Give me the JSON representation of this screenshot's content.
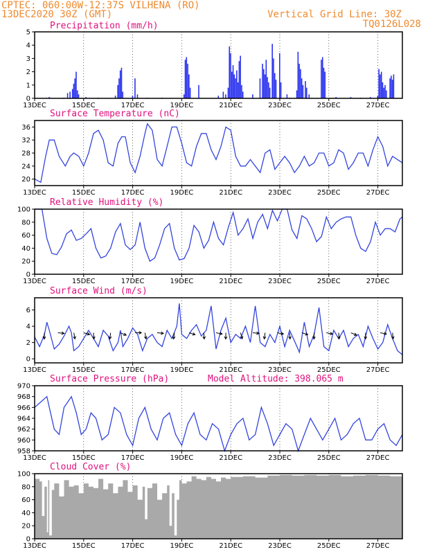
{
  "header": {
    "line1": "CPTEC:   060:00W-12:37S  VILHENA (RO)",
    "line2": "13DEC2020 30Z (GMT)",
    "grid_note": "Vertical Grid Line: 30Z",
    "code": "TQ0126L028"
  },
  "colors": {
    "header": "#ee8a2e",
    "title": "#e0117d",
    "line": "#3344dd",
    "bar": "#2b33ee",
    "cloud": "#a9a9a9"
  },
  "chart_data": [
    {
      "id": "precip",
      "type": "bar",
      "title": "Precipitation (mm/h)",
      "ylim": [
        0,
        5
      ],
      "yticks": [
        0,
        1,
        2,
        3,
        4,
        5
      ],
      "x_ticks": [
        "13DEC",
        "15DEC",
        "17DEC",
        "19DEC",
        "21DEC",
        "23DEC",
        "25DEC",
        "27DEC"
      ],
      "x_tick_days": [
        0,
        2,
        4,
        6,
        8,
        10,
        12,
        14
      ],
      "x_range": [
        0,
        15
      ],
      "events": [
        {
          "x": 0.6,
          "v": 0.1
        },
        {
          "x": 1.2,
          "v": 0.05
        },
        {
          "x": 1.35,
          "v": 0.4
        },
        {
          "x": 1.45,
          "v": 0.5
        },
        {
          "x": 1.55,
          "v": 0.7
        },
        {
          "x": 1.6,
          "v": 1.1
        },
        {
          "x": 1.65,
          "v": 1.5
        },
        {
          "x": 1.7,
          "v": 2.0
        },
        {
          "x": 1.75,
          "v": 0.6
        },
        {
          "x": 1.8,
          "v": 0.3
        },
        {
          "x": 2.1,
          "v": 0.1
        },
        {
          "x": 2.6,
          "v": 0.05
        },
        {
          "x": 3.3,
          "v": 0.2
        },
        {
          "x": 3.4,
          "v": 1.0
        },
        {
          "x": 3.45,
          "v": 1.5
        },
        {
          "x": 3.5,
          "v": 2.1
        },
        {
          "x": 3.55,
          "v": 2.3
        },
        {
          "x": 3.6,
          "v": 0.5
        },
        {
          "x": 4.0,
          "v": 0.2
        },
        {
          "x": 4.1,
          "v": 1.5
        },
        {
          "x": 4.2,
          "v": 0.3
        },
        {
          "x": 4.6,
          "v": 0.05
        },
        {
          "x": 5.2,
          "v": 0.05
        },
        {
          "x": 6.1,
          "v": 0.3
        },
        {
          "x": 6.15,
          "v": 2.9
        },
        {
          "x": 6.2,
          "v": 3.1
        },
        {
          "x": 6.25,
          "v": 2.6
        },
        {
          "x": 6.3,
          "v": 1.8
        },
        {
          "x": 6.35,
          "v": 0.8
        },
        {
          "x": 6.7,
          "v": 1.0
        },
        {
          "x": 7.5,
          "v": 0.2
        },
        {
          "x": 7.7,
          "v": 0.5
        },
        {
          "x": 7.8,
          "v": 0.3
        },
        {
          "x": 7.9,
          "v": 0.8
        },
        {
          "x": 7.95,
          "v": 3.9
        },
        {
          "x": 8.0,
          "v": 3.4
        },
        {
          "x": 8.05,
          "v": 2.0
        },
        {
          "x": 8.1,
          "v": 2.5
        },
        {
          "x": 8.15,
          "v": 1.8
        },
        {
          "x": 8.2,
          "v": 1.5
        },
        {
          "x": 8.25,
          "v": 2.1
        },
        {
          "x": 8.3,
          "v": 1.2
        },
        {
          "x": 8.35,
          "v": 2.8
        },
        {
          "x": 8.4,
          "v": 3.2
        },
        {
          "x": 8.45,
          "v": 1.0
        },
        {
          "x": 8.5,
          "v": 0.5
        },
        {
          "x": 8.9,
          "v": 0.3
        },
        {
          "x": 9.2,
          "v": 1.5
        },
        {
          "x": 9.3,
          "v": 2.6
        },
        {
          "x": 9.35,
          "v": 2.2
        },
        {
          "x": 9.4,
          "v": 1.8
        },
        {
          "x": 9.45,
          "v": 2.9
        },
        {
          "x": 9.5,
          "v": 1.6
        },
        {
          "x": 9.55,
          "v": 1.2
        },
        {
          "x": 9.6,
          "v": 0.8
        },
        {
          "x": 9.7,
          "v": 4.1
        },
        {
          "x": 9.75,
          "v": 3.0
        },
        {
          "x": 9.8,
          "v": 1.9
        },
        {
          "x": 9.85,
          "v": 1.4
        },
        {
          "x": 10.0,
          "v": 3.4
        },
        {
          "x": 10.05,
          "v": 1.2
        },
        {
          "x": 10.3,
          "v": 0.3
        },
        {
          "x": 10.4,
          "v": 0.05
        },
        {
          "x": 10.7,
          "v": 0.6
        },
        {
          "x": 10.75,
          "v": 3.5
        },
        {
          "x": 10.8,
          "v": 2.6
        },
        {
          "x": 10.85,
          "v": 2.2
        },
        {
          "x": 10.9,
          "v": 1.5
        },
        {
          "x": 10.95,
          "v": 1.0
        },
        {
          "x": 11.05,
          "v": 1.3
        },
        {
          "x": 11.1,
          "v": 0.8
        },
        {
          "x": 11.2,
          "v": 0.3
        },
        {
          "x": 11.7,
          "v": 2.9
        },
        {
          "x": 11.75,
          "v": 3.1
        },
        {
          "x": 11.8,
          "v": 2.3
        },
        {
          "x": 11.85,
          "v": 2.0
        },
        {
          "x": 12.3,
          "v": 0.1
        },
        {
          "x": 12.9,
          "v": 0.1
        },
        {
          "x": 13.3,
          "v": 0.05
        },
        {
          "x": 13.7,
          "v": 0.1
        },
        {
          "x": 14.0,
          "v": 0.2
        },
        {
          "x": 14.05,
          "v": 2.2
        },
        {
          "x": 14.1,
          "v": 1.8
        },
        {
          "x": 14.15,
          "v": 2.0
        },
        {
          "x": 14.2,
          "v": 1.2
        },
        {
          "x": 14.25,
          "v": 0.8
        },
        {
          "x": 14.3,
          "v": 1.0
        },
        {
          "x": 14.35,
          "v": 0.6
        },
        {
          "x": 14.5,
          "v": 1.5
        },
        {
          "x": 14.55,
          "v": 1.7
        },
        {
          "x": 14.6,
          "v": 1.4
        },
        {
          "x": 14.65,
          "v": 1.8
        }
      ]
    },
    {
      "id": "temp",
      "type": "line",
      "title": "Surface Temperature (nC)",
      "ylim": [
        18,
        38
      ],
      "yticks": [
        20,
        24,
        28,
        32,
        36
      ],
      "x_ticks": [
        "13DEC",
        "15DEC",
        "17DEC",
        "19DEC",
        "21DEC",
        "23DEC",
        "25DEC",
        "27DEC"
      ],
      "x_tick_days": [
        0,
        2,
        4,
        6,
        8,
        10,
        12,
        14
      ],
      "x_range": [
        0,
        15
      ],
      "x": [
        0,
        0.25,
        0.45,
        0.6,
        0.8,
        1.0,
        1.25,
        1.45,
        1.6,
        1.8,
        2.0,
        2.2,
        2.4,
        2.6,
        2.8,
        3.0,
        3.2,
        3.4,
        3.55,
        3.7,
        3.9,
        4.1,
        4.3,
        4.5,
        4.6,
        4.8,
        5.0,
        5.2,
        5.4,
        5.6,
        5.8,
        6.0,
        6.2,
        6.4,
        6.6,
        6.8,
        7.0,
        7.2,
        7.4,
        7.6,
        7.8,
        8.0,
        8.2,
        8.4,
        8.6,
        8.8,
        9.0,
        9.2,
        9.4,
        9.6,
        9.8,
        10.0,
        10.2,
        10.4,
        10.6,
        10.8,
        11.0,
        11.2,
        11.4,
        11.6,
        11.8,
        12.0,
        12.2,
        12.4,
        12.6,
        12.8,
        13.0,
        13.2,
        13.4,
        13.6,
        13.8,
        14.0,
        14.2,
        14.4,
        14.6,
        14.8,
        15.0
      ],
      "y": [
        20,
        19,
        27,
        32,
        32,
        27,
        24,
        27,
        28,
        27,
        24,
        28,
        34,
        35,
        32,
        25,
        24,
        31,
        33,
        33,
        25,
        22,
        27,
        34,
        37,
        35,
        26,
        24,
        30,
        36,
        36,
        31,
        25,
        24,
        30,
        34,
        34,
        29,
        26,
        30,
        36,
        35,
        27,
        24,
        24,
        26,
        24,
        22,
        28,
        29,
        23,
        25,
        27,
        25,
        22,
        24,
        27,
        24,
        25,
        28,
        28,
        24,
        25,
        29,
        28,
        23,
        25,
        28,
        28,
        24,
        29,
        33,
        30,
        24,
        27,
        26,
        25
      ]
    },
    {
      "id": "rh",
      "type": "line",
      "title": "Relative Humidity (%)",
      "ylim": [
        0,
        100
      ],
      "yticks": [
        0,
        20,
        40,
        60,
        80,
        100
      ],
      "x_ticks": [
        "13DEC",
        "15DEC",
        "17DEC",
        "19DEC",
        "21DEC",
        "23DEC",
        "25DEC",
        "27DEC"
      ],
      "x_tick_days": [
        0,
        2,
        4,
        6,
        8,
        10,
        12,
        14
      ],
      "x_range": [
        0,
        15
      ],
      "x": [
        0,
        0.3,
        0.5,
        0.7,
        0.9,
        1.1,
        1.3,
        1.5,
        1.7,
        1.9,
        2.1,
        2.3,
        2.5,
        2.7,
        2.9,
        3.1,
        3.3,
        3.5,
        3.7,
        3.9,
        4.1,
        4.3,
        4.5,
        4.7,
        4.9,
        5.1,
        5.3,
        5.5,
        5.7,
        5.9,
        6.1,
        6.3,
        6.5,
        6.7,
        6.9,
        7.1,
        7.3,
        7.5,
        7.7,
        7.9,
        8.1,
        8.3,
        8.5,
        8.7,
        8.9,
        9.1,
        9.3,
        9.5,
        9.7,
        9.9,
        10.1,
        10.3,
        10.5,
        10.7,
        10.9,
        11.1,
        11.3,
        11.5,
        11.7,
        11.9,
        12.1,
        12.3,
        12.5,
        12.7,
        12.9,
        13.1,
        13.3,
        13.5,
        13.7,
        13.9,
        14.1,
        14.3,
        14.5,
        14.7,
        14.9,
        15.0
      ],
      "y": [
        100,
        100,
        55,
        32,
        30,
        42,
        62,
        68,
        52,
        55,
        62,
        70,
        40,
        25,
        28,
        40,
        65,
        78,
        45,
        38,
        45,
        80,
        40,
        20,
        25,
        45,
        70,
        78,
        40,
        22,
        24,
        40,
        75,
        65,
        40,
        52,
        80,
        55,
        45,
        72,
        95,
        60,
        70,
        85,
        55,
        80,
        92,
        70,
        98,
        82,
        100,
        100,
        68,
        55,
        90,
        85,
        70,
        50,
        58,
        88,
        70,
        80,
        85,
        88,
        88,
        60,
        40,
        35,
        50,
        80,
        60,
        70,
        70,
        65,
        85,
        88
      ]
    },
    {
      "id": "wind",
      "type": "line",
      "title": "Surface Wind (m/s)",
      "ylim": [
        -0.5,
        7.5
      ],
      "yticks": [
        0,
        2,
        4,
        6
      ],
      "x_ticks": [
        "13DEC",
        "15DEC",
        "17DEC",
        "19DEC",
        "21DEC",
        "23DEC",
        "25DEC",
        "27DEC"
      ],
      "x_tick_days": [
        0,
        2,
        4,
        6,
        8,
        10,
        12,
        14
      ],
      "x_range": [
        0,
        15
      ],
      "x": [
        0,
        0.2,
        0.4,
        0.5,
        0.6,
        0.8,
        1.0,
        1.2,
        1.4,
        1.5,
        1.6,
        1.8,
        2.0,
        2.2,
        2.4,
        2.6,
        2.8,
        3.0,
        3.2,
        3.4,
        3.5,
        3.6,
        3.8,
        4.0,
        4.2,
        4.4,
        4.6,
        4.8,
        5.0,
        5.2,
        5.4,
        5.6,
        5.8,
        5.9,
        6.0,
        6.2,
        6.4,
        6.6,
        6.8,
        7.0,
        7.2,
        7.4,
        7.6,
        7.8,
        8.0,
        8.2,
        8.4,
        8.6,
        8.8,
        9.0,
        9.2,
        9.4,
        9.6,
        9.8,
        10.0,
        10.2,
        10.4,
        10.6,
        10.8,
        11.0,
        11.2,
        11.4,
        11.6,
        11.8,
        12.0,
        12.2,
        12.4,
        12.6,
        12.8,
        13.0,
        13.2,
        13.4,
        13.6,
        13.8,
        14.0,
        14.2,
        14.4,
        14.6,
        14.8,
        15.0
      ],
      "y": [
        2.7,
        1.5,
        3.0,
        4.5,
        3.5,
        1.2,
        1.8,
        2.8,
        4.0,
        3.2,
        1.0,
        1.5,
        2.5,
        3.5,
        2.5,
        1.5,
        3.5,
        2.8,
        1.0,
        2.0,
        3.5,
        1.5,
        2.5,
        3.8,
        3.0,
        1.0,
        2.5,
        3.0,
        2.0,
        1.5,
        3.5,
        2.5,
        4.0,
        6.8,
        3.0,
        2.5,
        3.5,
        4.2,
        2.8,
        3.5,
        6.5,
        1.2,
        3.5,
        5.0,
        2.0,
        3.0,
        2.5,
        4.0,
        2.0,
        6.5,
        2.0,
        1.5,
        3.0,
        2.0,
        4.0,
        1.5,
        3.5,
        2.2,
        0.8,
        4.5,
        1.5,
        3.0,
        6.3,
        1.5,
        1.0,
        3.5,
        2.5,
        3.5,
        1.5,
        2.5,
        3.0,
        1.5,
        4.0,
        2.5,
        1.2,
        2.0,
        4.2,
        2.5,
        1.0,
        0.5
      ]
    },
    {
      "id": "pres",
      "type": "line",
      "title": "Surface Pressure (hPa)",
      "model_altitude": "Model Altitude: 398.065 m",
      "ylim": [
        958,
        970
      ],
      "yticks": [
        958,
        960,
        962,
        964,
        966,
        968,
        970
      ],
      "x_ticks": [
        "13DEC",
        "15DEC",
        "17DEC",
        "19DEC",
        "21DEC",
        "23DEC",
        "25DEC",
        "27DEC"
      ],
      "x_tick_days": [
        0,
        2,
        4,
        6,
        8,
        10,
        12,
        14
      ],
      "x_range": [
        0,
        15
      ],
      "x": [
        0,
        0.25,
        0.5,
        0.65,
        0.8,
        1.0,
        1.2,
        1.5,
        1.7,
        1.9,
        2.1,
        2.3,
        2.5,
        2.75,
        3.0,
        3.25,
        3.5,
        3.75,
        4.0,
        4.25,
        4.5,
        4.75,
        5.0,
        5.25,
        5.5,
        5.75,
        6.0,
        6.25,
        6.5,
        6.75,
        7.0,
        7.25,
        7.5,
        7.75,
        8.0,
        8.25,
        8.5,
        8.75,
        9.0,
        9.25,
        9.5,
        9.75,
        10.0,
        10.25,
        10.5,
        10.75,
        11.0,
        11.25,
        11.5,
        11.75,
        12.0,
        12.25,
        12.5,
        12.75,
        13.0,
        13.25,
        13.5,
        13.75,
        14.0,
        14.25,
        14.5,
        14.75,
        15.0
      ],
      "y": [
        966,
        967,
        968,
        965,
        962,
        961,
        966,
        968,
        965,
        961,
        962,
        965,
        964,
        960,
        961,
        966,
        965,
        961,
        959,
        964,
        966,
        962,
        960,
        964,
        965,
        961,
        959,
        963,
        965,
        961,
        960,
        963,
        962,
        958,
        961,
        963,
        964,
        960,
        961,
        966,
        963,
        959,
        961,
        963,
        962,
        958,
        961,
        964,
        962,
        960,
        962,
        964,
        960,
        961,
        963,
        964,
        960,
        960,
        962,
        963,
        960,
        959,
        961
      ]
    },
    {
      "id": "cloud",
      "type": "area",
      "title": "Cloud Cover (%)",
      "ylim": [
        0,
        100
      ],
      "yticks": [
        0,
        20,
        40,
        60,
        80,
        100
      ],
      "x_ticks": [
        "13DEC",
        "15DEC",
        "17DEC",
        "19DEC",
        "21DEC",
        "23DEC",
        "25DEC",
        "27DEC"
      ],
      "x_tick_days": [
        0,
        2,
        4,
        6,
        8,
        10,
        12,
        14
      ],
      "x_range": [
        0,
        15
      ],
      "x": [
        0,
        0.2,
        0.3,
        0.4,
        0.5,
        0.55,
        0.6,
        0.7,
        0.8,
        1.0,
        1.2,
        1.4,
        1.6,
        1.8,
        2.0,
        2.2,
        2.4,
        2.6,
        2.8,
        3.0,
        3.2,
        3.4,
        3.6,
        3.8,
        4.0,
        4.2,
        4.4,
        4.5,
        4.6,
        4.8,
        5.0,
        5.2,
        5.4,
        5.5,
        5.6,
        5.7,
        5.8,
        5.9,
        6.0,
        6.2,
        6.4,
        6.6,
        6.8,
        7.0,
        7.2,
        7.4,
        7.6,
        7.8,
        8.0,
        8.5,
        9.0,
        9.5,
        10.0,
        10.5,
        11.0,
        11.5,
        12.0,
        12.5,
        13.0,
        13.5,
        14.0,
        14.5,
        15.0
      ],
      "y": [
        92,
        88,
        35,
        80,
        10,
        90,
        5,
        75,
        85,
        65,
        90,
        80,
        82,
        70,
        85,
        80,
        78,
        92,
        76,
        85,
        70,
        80,
        90,
        72,
        82,
        60,
        80,
        30,
        78,
        85,
        60,
        70,
        82,
        20,
        70,
        5,
        60,
        90,
        85,
        88,
        96,
        92,
        90,
        95,
        92,
        88,
        94,
        92,
        95,
        96,
        94,
        97,
        98,
        97,
        98,
        97,
        98,
        96,
        97,
        98,
        97,
        96,
        98
      ]
    }
  ]
}
